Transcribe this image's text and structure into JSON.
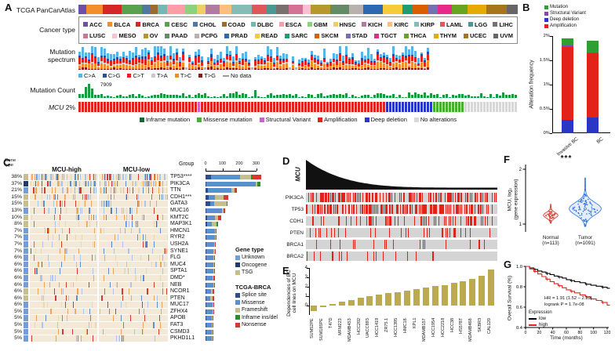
{
  "panelA": {
    "label": "A",
    "cohort_label": "TCGA PanCanAtlas",
    "cancer_type_label": "Cancer type",
    "mutation_spectrum_label_line1": "Mutation",
    "mutation_spectrum_label_line2": "spectrum",
    "mutation_count_label": "Mutation Count",
    "gene_label": "MCU",
    "gene_alteration_pct": "2%",
    "mutation_count_peak": "7909",
    "mutation_count_color": "#169c3e",
    "no_data_label": "No data",
    "cancer_types_row1": [
      {
        "name": "ACC",
        "color": "#6a51a3"
      },
      {
        "name": "BLCA",
        "color": "#f28e2b"
      },
      {
        "name": "BRCA",
        "color": "#d62728"
      },
      {
        "name": "CESC",
        "color": "#59a14f"
      },
      {
        "name": "CHOL",
        "color": "#4e79a7"
      },
      {
        "name": "COAD",
        "color": "#9c6b30"
      },
      {
        "name": "DLBC",
        "color": "#76b7b2"
      },
      {
        "name": "ESCA",
        "color": "#ff9da7"
      },
      {
        "name": "GBM",
        "color": "#8cd17d"
      },
      {
        "name": "HNSC",
        "color": "#f1ce63"
      },
      {
        "name": "KICH",
        "color": "#b07aa1"
      },
      {
        "name": "KIRC",
        "color": "#ffbe7d"
      },
      {
        "name": "KIRP",
        "color": "#86bcb6"
      },
      {
        "name": "LAML",
        "color": "#e15759"
      },
      {
        "name": "LGG",
        "color": "#499894"
      },
      {
        "name": "LIHC",
        "color": "#79706e"
      }
    ],
    "cancer_types_row2": [
      {
        "name": "LUSC",
        "color": "#d37295"
      },
      {
        "name": "MESO",
        "color": "#fabfd2"
      },
      {
        "name": "OV",
        "color": "#b6992d"
      },
      {
        "name": "PAAD",
        "color": "#638b66"
      },
      {
        "name": "PCPG",
        "color": "#bab0ac"
      },
      {
        "name": "PRAD",
        "color": "#2c69b0"
      },
      {
        "name": "READ",
        "color": "#f4cc3a"
      },
      {
        "name": "SARC",
        "color": "#1b9e77"
      },
      {
        "name": "SKCM",
        "color": "#d95f02"
      },
      {
        "name": "STAD",
        "color": "#7570b3"
      },
      {
        "name": "TGCT",
        "color": "#e7298a"
      },
      {
        "name": "THCA",
        "color": "#66a61e"
      },
      {
        "name": "THYM",
        "color": "#e6ab02"
      },
      {
        "name": "UCEC",
        "color": "#a6761d"
      },
      {
        "name": "UVM",
        "color": "#666666"
      }
    ],
    "spectrum_legend": [
      {
        "label": "C>A",
        "color": "#57b4e9"
      },
      {
        "label": "C>G",
        "color": "#2b4da0"
      },
      {
        "label": "C>T",
        "color": "#e2231a"
      },
      {
        "label": "T>A",
        "color": "#c9c9c9"
      },
      {
        "label": "T>C",
        "color": "#f28c28"
      },
      {
        "label": "T>G",
        "color": "#8a1a12"
      }
    ],
    "spectrum_weights": [
      0.3,
      0.08,
      0.25,
      0.07,
      0.22,
      0.08
    ],
    "alteration_legend": [
      {
        "label": "Inframe mutation",
        "color": "#0f6b31"
      },
      {
        "label": "Missense mutation",
        "color": "#45b02c"
      },
      {
        "label": "Structural Variant",
        "color": "#cf5fd0"
      },
      {
        "label": "Amplification",
        "color": "#e2231a"
      },
      {
        "label": "Deep deletion",
        "color": "#2b35c6"
      },
      {
        "label": "No alterations",
        "color": "#d8d8d8"
      }
    ],
    "mcu_track_proportions": [
      {
        "label": "Amplification",
        "frac": 0.7
      },
      {
        "label": "Deep deletion",
        "frac": 0.11
      },
      {
        "label": "Missense mutation",
        "frac": 0.07
      },
      {
        "label": "No alterations",
        "frac": 0.12
      }
    ]
  },
  "panelB": {
    "label": "B",
    "legend": [
      {
        "label": "Mutation",
        "color": "#2f9e33"
      },
      {
        "label": "Structural Variant",
        "color": "#8e44ad"
      },
      {
        "label": "Deep deletion",
        "color": "#2b35c6"
      },
      {
        "label": "Amplification",
        "color": "#e2231a"
      }
    ]
  },
  "panelC": {
    "label": "C",
    "gene_type_header_line1": "Gene",
    "gene_type_header_line2": "type",
    "gene_type_legend_title": "Gene type",
    "gene_type_legend": [
      {
        "label": "Unknown",
        "color": "#6f9fd8"
      },
      {
        "label": "Oncogene",
        "color": "#1f3b70"
      },
      {
        "label": "TSG",
        "color": "#c8bd8f"
      }
    ],
    "mutation_legend_title": "TCGA-BRCA",
    "mutation_legend": [
      {
        "label": "Splice site",
        "color": "#2c4d8e"
      },
      {
        "label": "Missense",
        "color": "#5b8fd0"
      },
      {
        "label": "Frameshift",
        "color": "#c8bd8f"
      },
      {
        "label": "Inframe ins/del",
        "color": "#2e8b2e"
      },
      {
        "label": "Nonsense",
        "color": "#d43a2f"
      }
    ]
  },
  "panelD": {
    "label": "D",
    "gene_label": "MCU",
    "waterfall_color": "#111111",
    "track_bg": "#d4d4d4",
    "tick_color": "#e2231a",
    "tracks": [
      {
        "name": "PIK3CA",
        "ticks": 160
      },
      {
        "name": "TP53",
        "ticks": 160
      },
      {
        "name": "CDH1",
        "ticks": 70
      },
      {
        "name": "PTEN",
        "ticks": 34
      },
      {
        "name": "BRCA1",
        "ticks": 18
      },
      {
        "name": "BRCA2",
        "ticks": 18
      }
    ]
  },
  "panelE": {
    "label": "E",
    "ylabel_line1": "Dependencies of BC",
    "ylabel_line2": "cell lines on MCU"
  },
  "panelF": {
    "label": "F",
    "ylabel_line1": "MCU, log₂",
    "ylabel_line2": "(gene expression)",
    "significance": "***",
    "groups": [
      {
        "line1": "Normal",
        "line2": "(n=113)"
      },
      {
        "line1": "Tumor",
        "line2": "(n=1091)"
      }
    ]
  },
  "panelG": {
    "label": "G"
  },
  "chart_data": [
    {
      "id": "B_alteration_frequency",
      "type": "bar",
      "stacked": true,
      "ylabel": "Alteration frequency",
      "categories": [
        "Invasive BC",
        "BC"
      ],
      "ylim": [
        0,
        2
      ],
      "yticks": [
        "0%",
        "0.5%",
        "1%",
        "1.5%",
        "2%"
      ],
      "series": [
        {
          "name": "Deep deletion",
          "color": "#2b35c6",
          "values": [
            0.28,
            0.33
          ]
        },
        {
          "name": "Amplification",
          "color": "#e2231a",
          "values": [
            1.5,
            1.31
          ]
        },
        {
          "name": "Structural Variant",
          "color": "#8e44ad",
          "values": [
            0.02,
            0.02
          ]
        },
        {
          "name": "Mutation",
          "color": "#2f9e33",
          "values": [
            0.15,
            0.25
          ]
        }
      ]
    },
    {
      "id": "C_brca_oncoprint",
      "type": "oncoprint",
      "columns": [
        "MCU-high",
        "MCU-low"
      ],
      "group_axis_label": "Group",
      "group_axis_ticks": [
        "0",
        "100",
        "200",
        "300"
      ],
      "group_max": 300,
      "genes": [
        {
          "pct": "38%",
          "name": "TP53****",
          "gene_type": "TSG",
          "count": 330,
          "mix": [
            0.1,
            0.52,
            0.2,
            0.03,
            0.15
          ]
        },
        {
          "pct": "37%",
          "name": "PIK3CA",
          "gene_type": "Oncogene",
          "count": 322,
          "mix": [
            0.02,
            0.9,
            0.04,
            0.03,
            0.01
          ]
        },
        {
          "pct": "21%",
          "name": "TTN",
          "gene_type": "Unknown",
          "count": 186,
          "mix": [
            0.07,
            0.75,
            0.1,
            0,
            0.08
          ]
        },
        {
          "pct": "15%",
          "name": "CDH1***",
          "gene_type": "TSG",
          "count": 136,
          "mix": [
            0.15,
            0.25,
            0.4,
            0,
            0.2
          ]
        },
        {
          "pct": "15%",
          "name": "GATA3",
          "gene_type": "TSG",
          "count": 130,
          "mix": [
            0.2,
            0.2,
            0.55,
            0,
            0.05
          ]
        },
        {
          "pct": "13%",
          "name": "MUC16",
          "gene_type": "Unknown",
          "count": 116,
          "mix": [
            0.05,
            0.8,
            0.08,
            0,
            0.07
          ]
        },
        {
          "pct": "10%",
          "name": "KMT2C",
          "gene_type": "TSG",
          "count": 92,
          "mix": [
            0.1,
            0.5,
            0.2,
            0,
            0.2
          ]
        },
        {
          "pct": "8%",
          "name": "MAP3K1",
          "gene_type": "TSG",
          "count": 76,
          "mix": [
            0.1,
            0.4,
            0.35,
            0.05,
            0.1
          ]
        },
        {
          "pct": "7%",
          "name": "HMCN1",
          "gene_type": "Unknown",
          "count": 66,
          "mix": [
            0.05,
            0.8,
            0.08,
            0,
            0.07
          ]
        },
        {
          "pct": "7%",
          "name": "RYR2",
          "gene_type": "Unknown",
          "count": 64,
          "mix": [
            0.05,
            0.8,
            0.08,
            0,
            0.07
          ]
        },
        {
          "pct": "7%",
          "name": "USH2A",
          "gene_type": "Unknown",
          "count": 62,
          "mix": [
            0.05,
            0.8,
            0.08,
            0,
            0.07
          ]
        },
        {
          "pct": "7%",
          "name": "SYNE1",
          "gene_type": "Unknown",
          "count": 61,
          "mix": [
            0.05,
            0.75,
            0.1,
            0,
            0.1
          ]
        },
        {
          "pct": "6%",
          "name": "FLG",
          "gene_type": "Unknown",
          "count": 57,
          "mix": [
            0.05,
            0.8,
            0.08,
            0,
            0.07
          ]
        },
        {
          "pct": "6%",
          "name": "MUC4",
          "gene_type": "Unknown",
          "count": 55,
          "mix": [
            0.05,
            0.8,
            0.08,
            0,
            0.07
          ]
        },
        {
          "pct": "6%",
          "name": "SPTA1",
          "gene_type": "Unknown",
          "count": 54,
          "mix": [
            0.05,
            0.8,
            0.08,
            0,
            0.07
          ]
        },
        {
          "pct": "6%",
          "name": "DMD*",
          "gene_type": "Unknown",
          "count": 54,
          "mix": [
            0.05,
            0.75,
            0.1,
            0,
            0.1
          ]
        },
        {
          "pct": "6%",
          "name": "NEB",
          "gene_type": "Unknown",
          "count": 53,
          "mix": [
            0.05,
            0.8,
            0.08,
            0,
            0.07
          ]
        },
        {
          "pct": "6%",
          "name": "NCOR1",
          "gene_type": "TSG",
          "count": 52,
          "mix": [
            0.1,
            0.5,
            0.25,
            0,
            0.15
          ]
        },
        {
          "pct": "6%",
          "name": "PTEN",
          "gene_type": "TSG",
          "count": 52,
          "mix": [
            0.1,
            0.4,
            0.3,
            0,
            0.2
          ]
        },
        {
          "pct": "6%",
          "name": "MUC17",
          "gene_type": "Unknown",
          "count": 51,
          "mix": [
            0.05,
            0.8,
            0.08,
            0,
            0.07
          ]
        },
        {
          "pct": "5%",
          "name": "ZFHX4",
          "gene_type": "Unknown",
          "count": 48,
          "mix": [
            0.05,
            0.8,
            0.08,
            0,
            0.07
          ]
        },
        {
          "pct": "5%",
          "name": "APOB",
          "gene_type": "Unknown",
          "count": 46,
          "mix": [
            0.05,
            0.8,
            0.08,
            0,
            0.07
          ]
        },
        {
          "pct": "5%",
          "name": "FAT3",
          "gene_type": "Unknown",
          "count": 45,
          "mix": [
            0.05,
            0.8,
            0.08,
            0,
            0.07
          ]
        },
        {
          "pct": "5%",
          "name": "CSMD3",
          "gene_type": "Unknown",
          "count": 44,
          "mix": [
            0.05,
            0.8,
            0.08,
            0,
            0.07
          ]
        },
        {
          "pct": "5%",
          "name": "PKHD1L1",
          "gene_type": "Unknown",
          "count": 43,
          "mix": [
            0.05,
            0.8,
            0.08,
            0,
            0.07
          ]
        }
      ]
    },
    {
      "id": "E_mcu_dependency",
      "type": "bar",
      "ylabel": "Dependencies of BC cell lines on MCU",
      "color": "#bcaa4e",
      "ylim": [
        -1,
        4
      ],
      "yticks": [
        4,
        3,
        2,
        1,
        0
      ],
      "categories": [
        "SUM52PE",
        "SUM185PE",
        "T47D",
        "MFM223",
        "MDAMB453",
        "HCC202",
        "UACC893",
        "HCC1419",
        "ZR75.1",
        "HCC1395",
        "HMC18",
        "KPL1",
        "MDAMB157",
        "HCC1954",
        "HCC2218",
        "HCC38",
        "HS578T",
        "MDAMB468",
        "SKBR3",
        "CAL120"
      ],
      "values": [
        -0.55,
        -0.2,
        0.15,
        0.4,
        0.6,
        0.8,
        1.0,
        1.15,
        1.3,
        1.45,
        1.6,
        1.75,
        1.9,
        2.05,
        2.2,
        2.4,
        2.6,
        2.85,
        3.15,
        3.8
      ]
    },
    {
      "id": "F_mcu_expression",
      "type": "violin",
      "ylabel": "MCU, log2 (gene expression)",
      "significance": "***",
      "yticks": [
        2,
        1
      ],
      "ylim": [
        0.9,
        2.05
      ],
      "groups": [
        {
          "name": "Normal (n=113)",
          "color": "#d43a2f",
          "center": 1.16,
          "spread": 0.07,
          "range": [
            1.02,
            1.36
          ],
          "max_width": 9,
          "n_points": 40
        },
        {
          "name": "Tumor (n=1091)",
          "color": "#2b6fe2",
          "center": 1.28,
          "spread": 0.16,
          "range": [
            0.96,
            1.84
          ],
          "max_width": 20,
          "n_points": 90
        }
      ]
    },
    {
      "id": "G_overall_survival",
      "type": "line",
      "xlabel": "Time (months)",
      "ylabel": "Overall Survival (%)",
      "xticks": [
        0,
        20,
        40,
        60,
        80,
        100,
        120
      ],
      "yticks": [
        "1.0",
        "0.8",
        "0.6",
        "0.4"
      ],
      "xlim": [
        0,
        124
      ],
      "ylim": [
        0.4,
        1.0
      ],
      "annotations": [
        "HR = 1.91 (1.52 – 2.39)",
        "logrank P = 1.7e-08"
      ],
      "legend_title": "Expression",
      "series": [
        {
          "name": "low",
          "color": "#000000",
          "x": [
            0,
            6,
            12,
            18,
            24,
            30,
            36,
            42,
            48,
            54,
            60,
            66,
            72,
            80,
            88,
            96,
            104,
            112,
            120
          ],
          "y": [
            1.0,
            0.985,
            0.97,
            0.955,
            0.945,
            0.93,
            0.92,
            0.905,
            0.895,
            0.885,
            0.87,
            0.86,
            0.85,
            0.84,
            0.825,
            0.815,
            0.805,
            0.795,
            0.785
          ]
        },
        {
          "name": "high",
          "color": "#e2231a",
          "x": [
            0,
            6,
            12,
            18,
            24,
            30,
            36,
            42,
            48,
            54,
            60,
            66,
            72,
            80,
            88,
            96,
            104,
            112,
            120
          ],
          "y": [
            1.0,
            0.975,
            0.95,
            0.925,
            0.9,
            0.875,
            0.85,
            0.83,
            0.81,
            0.79,
            0.77,
            0.755,
            0.74,
            0.72,
            0.7,
            0.68,
            0.665,
            0.645,
            0.62
          ]
        }
      ]
    }
  ]
}
